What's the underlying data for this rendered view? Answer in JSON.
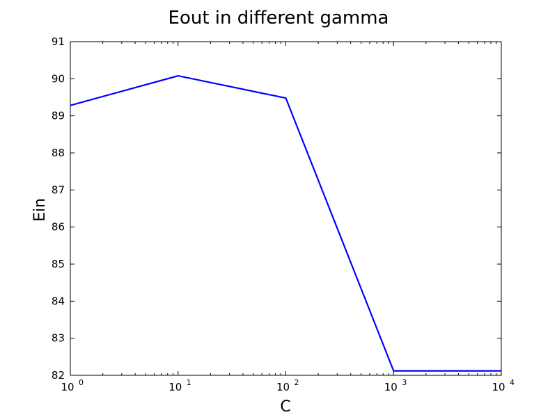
{
  "chart_data": {
    "type": "line",
    "title": "Eout in different gamma",
    "xlabel": "C",
    "ylabel": "Ein",
    "xscale": "log",
    "xlim": [
      1,
      10000
    ],
    "ylim": [
      82,
      91
    ],
    "x": [
      1,
      10,
      100,
      1000,
      10000
    ],
    "x_tick_labels": [
      {
        "base": "10",
        "exp": "0"
      },
      {
        "base": "10",
        "exp": "1"
      },
      {
        "base": "10",
        "exp": "2"
      },
      {
        "base": "10",
        "exp": "3"
      },
      {
        "base": "10",
        "exp": "4"
      }
    ],
    "y_ticks": [
      82,
      83,
      84,
      85,
      86,
      87,
      88,
      89,
      90,
      91
    ],
    "series": [
      {
        "values": [
          89.28,
          90.08,
          89.48,
          82.12,
          82.12
        ],
        "color": "#0000ff"
      }
    ],
    "grid": false,
    "legend": false
  }
}
